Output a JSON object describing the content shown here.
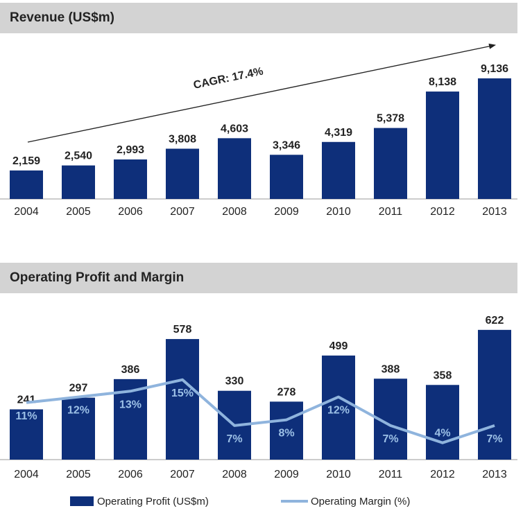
{
  "colors": {
    "bar": "#0e2f7a",
    "line": "#8fb4dd",
    "header_bg": "#d3d3d3",
    "text": "#222222",
    "pct_label": "#9cc0e6"
  },
  "revenue_panel": {
    "title": "Revenue (US$m)",
    "cagr_label": "CAGR:  17.4%"
  },
  "profit_panel": {
    "title": "Operating Profit and Margin",
    "legend": {
      "profit": "Operating Profit (US$m)",
      "margin": "Operating Margin (%)"
    }
  },
  "chart_data": [
    {
      "type": "bar",
      "title": "Revenue (US$m)",
      "categories": [
        "2004",
        "2005",
        "2006",
        "2007",
        "2008",
        "2009",
        "2010",
        "2011",
        "2012",
        "2013"
      ],
      "values": [
        2159,
        2540,
        2993,
        3808,
        4603,
        3346,
        4319,
        5378,
        8138,
        9136
      ],
      "value_labels": [
        "2,159",
        "2,540",
        "2,993",
        "3,808",
        "4,603",
        "3,346",
        "4,319",
        "5,378",
        "8,138",
        "9,136"
      ],
      "annotation": "CAGR:  17.4%"
    },
    {
      "type": "bar",
      "title": "Operating Profit and Margin",
      "categories": [
        "2004",
        "2005",
        "2006",
        "2007",
        "2008",
        "2009",
        "2010",
        "2011",
        "2012",
        "2013"
      ],
      "series": [
        {
          "name": "Operating Profit (US$m)",
          "type": "bar",
          "values": [
            241,
            297,
            386,
            578,
            330,
            278,
            499,
            388,
            358,
            622
          ],
          "value_labels": [
            "241",
            "297",
            "386",
            "578",
            "330",
            "278",
            "499",
            "388",
            "358",
            "622"
          ]
        },
        {
          "name": "Operating Margin (%)",
          "type": "line",
          "values": [
            11,
            12,
            13,
            15,
            7,
            8,
            12,
            7,
            4,
            7
          ],
          "value_labels": [
            "11%",
            "12%",
            "13%",
            "15%",
            "7%",
            "8%",
            "12%",
            "7%",
            "4%",
            "7%"
          ]
        }
      ]
    }
  ]
}
